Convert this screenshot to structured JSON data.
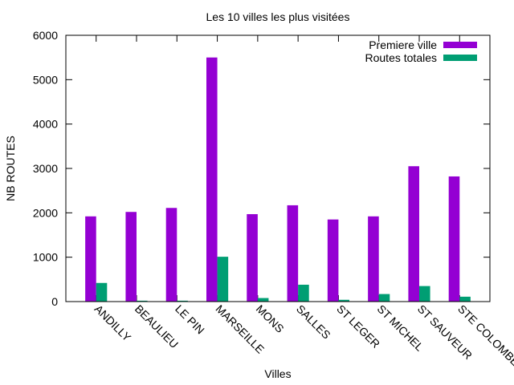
{
  "chart_data": {
    "type": "bar",
    "title": "Les 10 villes les plus visitées",
    "xlabel": "Villes",
    "ylabel": "NB ROUTES",
    "ylim": [
      0,
      6000
    ],
    "yticks": [
      0,
      1000,
      2000,
      3000,
      4000,
      5000,
      6000
    ],
    "grid": false,
    "legend_position": "top-right",
    "categories": [
      "ANDILLY",
      "BEAULIEU",
      "LE PIN",
      "MARSEILLE",
      "MONS",
      "SALLES",
      "ST LEGER",
      "ST MICHEL",
      "ST SAUVEUR",
      "STE COLOMBE"
    ],
    "series": [
      {
        "name": "Premiere ville",
        "color": "#9400d3",
        "values": [
          1920,
          2020,
          2110,
          5500,
          1970,
          2170,
          1850,
          1920,
          3050,
          2820
        ]
      },
      {
        "name": "Routes totales",
        "color": "#009e73",
        "values": [
          420,
          20,
          20,
          1010,
          80,
          380,
          40,
          170,
          350,
          110
        ]
      }
    ]
  }
}
